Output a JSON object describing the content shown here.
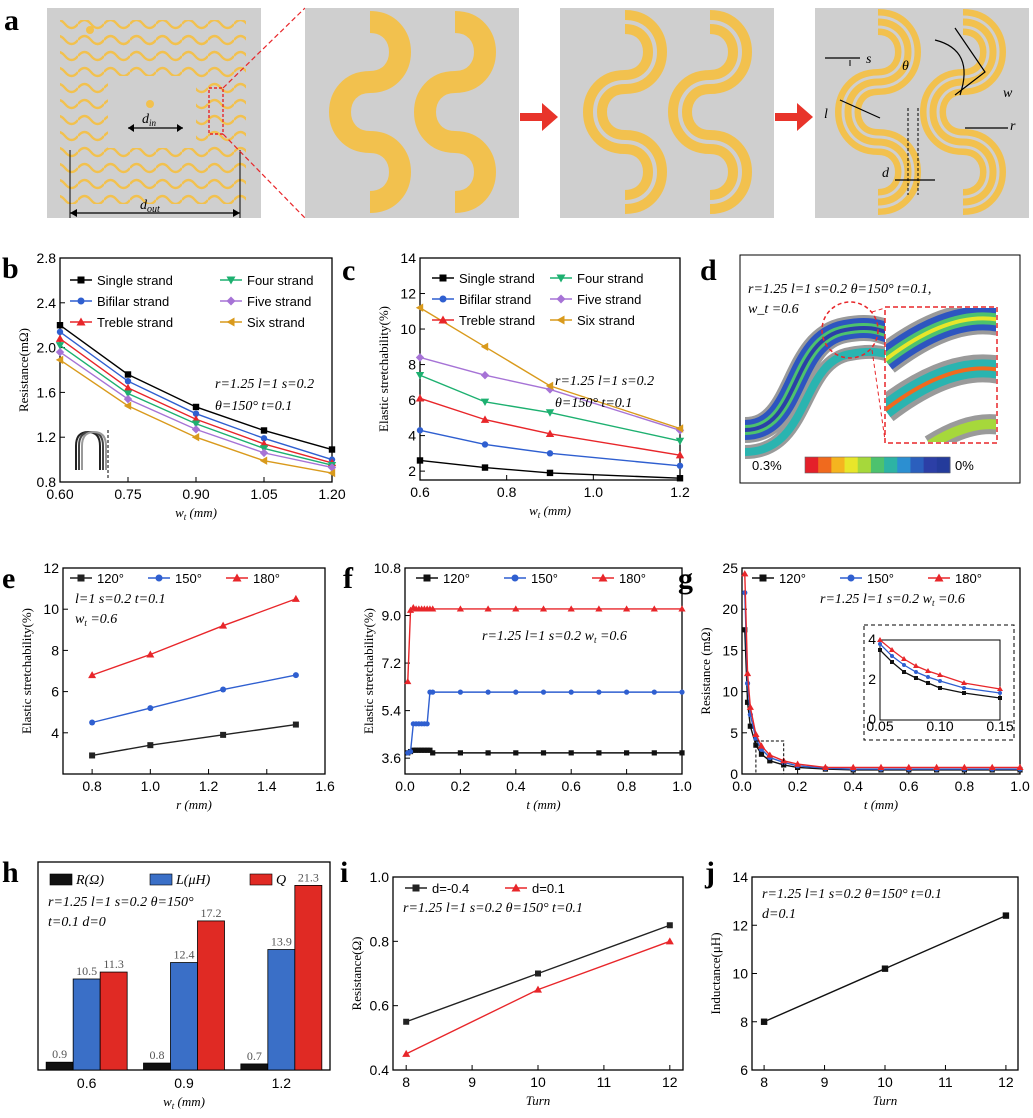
{
  "panel_letters": [
    "a",
    "b",
    "c",
    "d",
    "e",
    "f",
    "g",
    "h",
    "i",
    "j"
  ],
  "panel_a": {
    "din_label": "d_in",
    "dout_label": "d_out",
    "labels": [
      "s",
      "θ",
      "w",
      "l",
      "r",
      "d"
    ]
  },
  "panel_d": {
    "annotation_line1": "r=1.25  l=1  s=0.2  θ=150°  t=0.1,",
    "annotation_line2": "w_t =0.6",
    "colorbar_min": "0%",
    "colorbar_max": "0.3%",
    "colorbar_colors": [
      "#e4202a",
      "#f06a1e",
      "#f5b41f",
      "#e8e62a",
      "#a6d83b",
      "#4dc26e",
      "#2db3a4",
      "#2c8fd1",
      "#2b5fbd",
      "#2c3fa6",
      "#243b9b"
    ]
  },
  "chart_data": [
    {
      "id": "b",
      "type": "line",
      "ylabel": "Resistance(mΩ)",
      "xlabel": "w_t (mm)",
      "xlim": [
        0.6,
        1.2
      ],
      "ylim": [
        0.8,
        2.8
      ],
      "xticks": [
        "0.60",
        "0.75",
        "0.90",
        "1.05",
        "1.20"
      ],
      "yticks": [
        "0.8",
        "1.2",
        "1.6",
        "2.0",
        "2.4",
        "2.8"
      ],
      "annotation": [
        "r=1.25  l=1  s=0.2",
        "θ=150°  t=0.1"
      ],
      "x": [
        0.6,
        0.75,
        0.9,
        1.05,
        1.2
      ],
      "series": [
        {
          "name": "Single strand",
          "color": "#000000",
          "marker": "square",
          "values": [
            2.2,
            1.76,
            1.47,
            1.26,
            1.09
          ]
        },
        {
          "name": "Bifilar strand",
          "color": "#2f5fd0",
          "marker": "circle",
          "values": [
            2.14,
            1.7,
            1.41,
            1.19,
            1.0
          ]
        },
        {
          "name": "Treble strand",
          "color": "#e8262a",
          "marker": "triangle",
          "values": [
            2.08,
            1.64,
            1.36,
            1.14,
            0.97
          ]
        },
        {
          "name": "Four strand",
          "color": "#1db070",
          "marker": "triangle-down",
          "values": [
            2.02,
            1.59,
            1.32,
            1.1,
            0.95
          ]
        },
        {
          "name": "Five strand",
          "color": "#a673d6",
          "marker": "diamond",
          "values": [
            1.96,
            1.54,
            1.27,
            1.06,
            0.93
          ]
        },
        {
          "name": "Six strand",
          "color": "#d99a1c",
          "marker": "triangle-left",
          "values": [
            1.89,
            1.48,
            1.2,
            0.99,
            0.88
          ]
        }
      ]
    },
    {
      "id": "c",
      "type": "line",
      "ylabel": "Elastic stretchability(%)",
      "xlabel": "w_t (mm)",
      "xlim": [
        0.6,
        1.2
      ],
      "ylim": [
        1.5,
        14
      ],
      "xticks": [
        "0.6",
        "0.8",
        "1.0",
        "1.2"
      ],
      "yticks": [
        "2",
        "4",
        "6",
        "8",
        "10",
        "12",
        "14"
      ],
      "annotation": [
        "r=1.25  l=1  s=0.2",
        "θ=150°  t=0.1"
      ],
      "x": [
        0.6,
        0.75,
        0.9,
        1.2
      ],
      "series": [
        {
          "name": "Single strand",
          "color": "#000000",
          "marker": "square",
          "values": [
            2.6,
            2.2,
            1.9,
            1.6
          ]
        },
        {
          "name": "Bifilar strand",
          "color": "#2f5fd0",
          "marker": "circle",
          "values": [
            4.3,
            3.5,
            3.0,
            2.3
          ]
        },
        {
          "name": "Treble strand",
          "color": "#e8262a",
          "marker": "triangle",
          "values": [
            6.1,
            4.9,
            4.1,
            2.9
          ]
        },
        {
          "name": "Four strand",
          "color": "#1db070",
          "marker": "triangle-down",
          "values": [
            7.4,
            5.9,
            5.3,
            3.7
          ]
        },
        {
          "name": "Five strand",
          "color": "#a673d6",
          "marker": "diamond",
          "values": [
            8.4,
            7.4,
            6.6,
            4.3
          ]
        },
        {
          "name": "Six strand",
          "color": "#d99a1c",
          "marker": "triangle-left",
          "values": [
            11.2,
            9.0,
            6.8,
            4.4
          ]
        }
      ]
    },
    {
      "id": "e",
      "type": "line",
      "ylabel": "Elastic stretchability(%)",
      "xlabel": "r (mm)",
      "xlim": [
        0.7,
        1.6
      ],
      "ylim": [
        2,
        12
      ],
      "xticks": [
        "0.8",
        "1.0",
        "1.2",
        "1.4",
        "1.6"
      ],
      "yticks": [
        "4",
        "6",
        "8",
        "10",
        "12"
      ],
      "annotation": [
        "l=1  s=0.2  t=0.1",
        "w_t =0.6"
      ],
      "x": [
        0.8,
        1.0,
        1.25,
        1.5
      ],
      "series": [
        {
          "name": "120°",
          "color": "#222222",
          "marker": "square",
          "values": [
            2.9,
            3.4,
            3.9,
            4.4
          ]
        },
        {
          "name": "150°",
          "color": "#2f5fd0",
          "marker": "circle",
          "values": [
            4.5,
            5.2,
            6.1,
            6.8
          ]
        },
        {
          "name": "180°",
          "color": "#e8262a",
          "marker": "triangle",
          "values": [
            6.8,
            7.8,
            9.2,
            10.5
          ]
        }
      ]
    },
    {
      "id": "f",
      "type": "line",
      "ylabel": "Elastic stretchability(%)",
      "xlabel": "t (mm)",
      "xlim": [
        0,
        1.0
      ],
      "ylim": [
        3.0,
        10.8
      ],
      "xticks": [
        "0.0",
        "0.2",
        "0.4",
        "0.6",
        "0.8",
        "1.0"
      ],
      "yticks": [
        "3.6",
        "5.4",
        "7.2",
        "9.0",
        "10.8"
      ],
      "annotation": [
        "r=1.25  l=1  s=0.2  w_t =0.6"
      ],
      "x": [
        0.01,
        0.02,
        0.03,
        0.04,
        0.05,
        0.06,
        0.07,
        0.08,
        0.09,
        0.1,
        0.2,
        0.3,
        0.4,
        0.5,
        0.6,
        0.7,
        0.8,
        0.9,
        1.0
      ],
      "series": [
        {
          "name": "120°",
          "color": "#111111",
          "marker": "square",
          "values": [
            3.8,
            3.85,
            3.9,
            3.9,
            3.9,
            3.9,
            3.9,
            3.9,
            3.9,
            3.8,
            3.8,
            3.8,
            3.8,
            3.8,
            3.8,
            3.8,
            3.8,
            3.8,
            3.8
          ]
        },
        {
          "name": "150°",
          "color": "#2f5fd0",
          "marker": "circle",
          "values": [
            3.8,
            3.85,
            4.9,
            4.9,
            4.9,
            4.9,
            4.9,
            4.9,
            6.1,
            6.1,
            6.1,
            6.1,
            6.1,
            6.1,
            6.1,
            6.1,
            6.1,
            6.1,
            6.1
          ]
        },
        {
          "name": "180°",
          "color": "#e8262a",
          "marker": "triangle",
          "values": [
            6.5,
            9.2,
            9.3,
            9.25,
            9.25,
            9.25,
            9.25,
            9.25,
            9.25,
            9.25,
            9.25,
            9.25,
            9.25,
            9.25,
            9.25,
            9.25,
            9.25,
            9.25,
            9.25
          ]
        }
      ]
    },
    {
      "id": "g",
      "type": "line",
      "ylabel": "Resistance (mΩ)",
      "xlabel": "t (mm)",
      "xlim": [
        0,
        1.0
      ],
      "ylim": [
        0,
        25
      ],
      "xticks": [
        "0.0",
        "0.2",
        "0.4",
        "0.6",
        "0.8",
        "1.0"
      ],
      "yticks": [
        "0",
        "5",
        "10",
        "15",
        "20",
        "25"
      ],
      "annotation": [
        "r=1.25  l=1  s=0.2  w_t =0.6"
      ],
      "x": [
        0.01,
        0.02,
        0.03,
        0.05,
        0.07,
        0.1,
        0.15,
        0.2,
        0.3,
        0.4,
        0.5,
        0.6,
        0.7,
        0.8,
        0.9,
        1.0
      ],
      "series": [
        {
          "name": "120°",
          "color": "#111111",
          "marker": "square",
          "values": [
            17.5,
            8.7,
            5.8,
            3.5,
            2.4,
            1.6,
            1.1,
            0.8,
            0.6,
            0.5,
            0.5,
            0.5,
            0.5,
            0.5,
            0.5,
            0.5
          ]
        },
        {
          "name": "150°",
          "color": "#2f5fd0",
          "marker": "circle",
          "values": [
            22,
            11,
            7.2,
            4.3,
            3.0,
            2.0,
            1.4,
            1.0,
            0.7,
            0.6,
            0.6,
            0.6,
            0.6,
            0.6,
            0.6,
            0.6
          ]
        },
        {
          "name": "180°",
          "color": "#e8262a",
          "marker": "triangle",
          "values": [
            24.3,
            12.2,
            8.1,
            4.8,
            3.4,
            2.3,
            1.6,
            1.2,
            0.8,
            0.8,
            0.8,
            0.8,
            0.8,
            0.8,
            0.8,
            0.8
          ]
        }
      ],
      "inset": {
        "xlim": [
          0.05,
          0.15
        ],
        "ylim": [
          0,
          4
        ],
        "xticks": [
          "0.05",
          "0.10",
          "0.15"
        ],
        "yticks": [
          "0",
          "2",
          "4"
        ],
        "x": [
          0.05,
          0.06,
          0.07,
          0.08,
          0.09,
          0.1,
          0.12,
          0.15
        ],
        "series": [
          {
            "name": "120°",
            "values": [
              3.5,
              2.9,
              2.4,
              2.1,
              1.85,
              1.6,
              1.35,
              1.1
            ]
          },
          {
            "name": "150°",
            "values": [
              3.8,
              3.2,
              2.75,
              2.4,
              2.15,
              1.95,
              1.6,
              1.35
            ]
          },
          {
            "name": "180°",
            "values": [
              4.0,
              3.5,
              3.05,
              2.7,
              2.45,
              2.25,
              1.85,
              1.55
            ]
          }
        ]
      }
    },
    {
      "id": "h",
      "type": "bar",
      "xlabel": "w_t (mm)",
      "categories": [
        "0.6",
        "0.9",
        "1.2"
      ],
      "ylim": [
        0,
        24
      ],
      "annotation": [
        "r=1.25  l=1  s=0.2  θ=150°",
        "t=0.1  d=0"
      ],
      "series": [
        {
          "name": "R(Ω)",
          "color": "#111111",
          "values": [
            0.9,
            0.8,
            0.7
          ],
          "labels": [
            "0.9",
            "0.8",
            "0.7"
          ]
        },
        {
          "name": "L(μH)",
          "color": "#3a6fc7",
          "values": [
            10.5,
            12.4,
            13.9
          ],
          "labels": [
            "10.5",
            "12.4",
            "13.9"
          ]
        },
        {
          "name": "Q",
          "color": "#e02a24",
          "values": [
            11.3,
            17.2,
            21.3
          ],
          "labels": [
            "11.3",
            "17.2",
            "21.3"
          ]
        }
      ]
    },
    {
      "id": "i",
      "type": "line",
      "ylabel": "Resistance(Ω)",
      "xlabel": "Turn",
      "xlim": [
        7.8,
        12.2
      ],
      "ylim": [
        0.4,
        1.0
      ],
      "xticks": [
        "8",
        "9",
        "10",
        "11",
        "12"
      ],
      "yticks": [
        "0.4",
        "0.6",
        "0.8",
        "1.0"
      ],
      "annotation": [
        "r=1.25  l=1  s=0.2  θ=150°  t=0.1"
      ],
      "x": [
        8,
        10,
        12
      ],
      "series": [
        {
          "name": "d=-0.4",
          "color": "#222222",
          "marker": "square",
          "values": [
            0.55,
            0.7,
            0.85
          ]
        },
        {
          "name": "d=0.1",
          "color": "#e8262a",
          "marker": "triangle",
          "values": [
            0.45,
            0.65,
            0.8
          ]
        }
      ]
    },
    {
      "id": "j",
      "type": "line",
      "ylabel": "Inductance(μH)",
      "xlabel": "Turn",
      "xlim": [
        7.8,
        12.2
      ],
      "ylim": [
        6,
        14
      ],
      "xticks": [
        "8",
        "9",
        "10",
        "11",
        "12"
      ],
      "yticks": [
        "6",
        "8",
        "10",
        "12",
        "14"
      ],
      "annotation": [
        "r=1.25  l=1  s=0.2  θ=150°  t=0.1",
        "d=0.1"
      ],
      "x": [
        8,
        10,
        12
      ],
      "series": [
        {
          "name": "",
          "color": "#111111",
          "marker": "square",
          "values": [
            8.0,
            10.2,
            12.4
          ]
        }
      ]
    }
  ]
}
